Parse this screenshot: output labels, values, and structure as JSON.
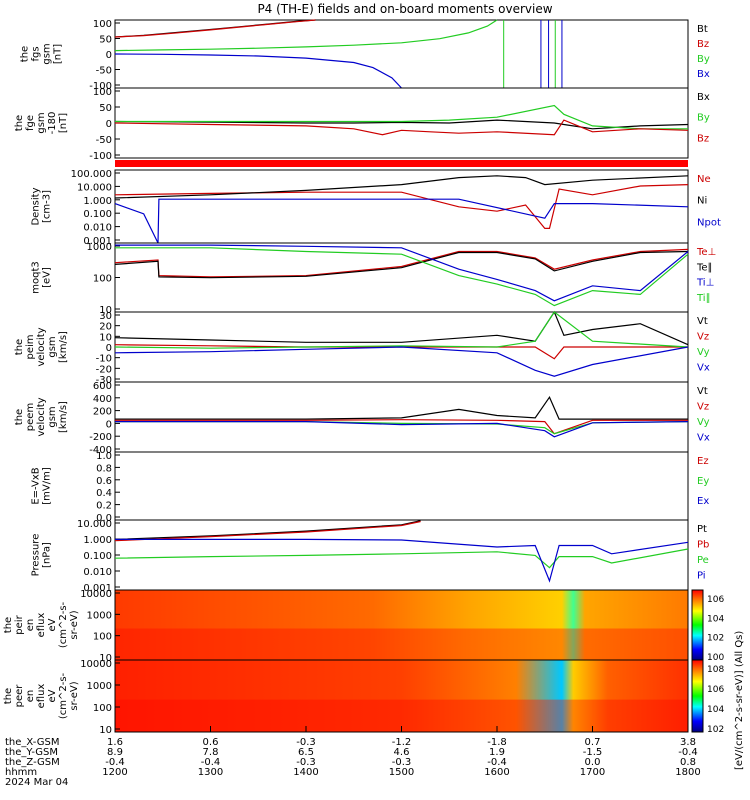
{
  "title": "P4 (TH-E) fields and on-board moments overview",
  "chart_data": [
    {
      "type": "line",
      "ylabel": [
        "the",
        "fgs",
        "gsm",
        "[nT]"
      ],
      "yticks": [
        100,
        50,
        0,
        -50,
        -100
      ],
      "ylim": [
        -100,
        100
      ],
      "legend": [
        {
          "name": "Bt",
          "color": "#000000"
        },
        {
          "name": "Bz",
          "color": "#cc0000"
        },
        {
          "name": "By",
          "color": "#22cc22"
        },
        {
          "name": "Bx",
          "color": "#0000cc"
        }
      ],
      "series": [
        {
          "name": "Bt",
          "color": "#000000",
          "x": [
            1200,
            1230,
            1260,
            1300,
            1330,
            1360,
            1390,
            1410
          ],
          "y": [
            50,
            55,
            62,
            72,
            80,
            88,
            96,
            100
          ]
        },
        {
          "name": "Bz",
          "color": "#cc0000",
          "x": [
            1200,
            1230,
            1260,
            1300,
            1330,
            1360,
            1390,
            1410
          ],
          "y": [
            50,
            54,
            61,
            71,
            79,
            87,
            95,
            100
          ]
        },
        {
          "name": "By",
          "color": "#22cc22",
          "x": [
            1200,
            1250,
            1300,
            1350,
            1400,
            1450,
            1500,
            1540,
            1570,
            1590,
            1600
          ],
          "y": [
            10,
            12,
            14,
            17,
            21,
            26,
            33,
            45,
            62,
            82,
            100
          ]
        },
        {
          "name": "Bx",
          "color": "#0000cc",
          "x": [
            1200,
            1250,
            1300,
            1350,
            1400,
            1450,
            1470,
            1490,
            1500
          ],
          "y": [
            0,
            -1,
            -3,
            -6,
            -12,
            -25,
            -40,
            -70,
            -100
          ]
        }
      ],
      "annotations_x": [
        1607,
        1646,
        1654,
        1661,
        1668
      ]
    },
    {
      "type": "line",
      "ylabel": [
        "the",
        "fge",
        "gsm",
        "-180",
        "[nT]"
      ],
      "yticks": [
        100,
        50,
        0,
        -50,
        -100
      ],
      "ylim": [
        -120,
        120
      ],
      "legend": [
        {
          "name": "Bx",
          "color": "#000000"
        },
        {
          "name": "By",
          "color": "#22cc22"
        },
        {
          "name": "Bz",
          "color": "#cc0000"
        }
      ],
      "series": [
        {
          "name": "Bx",
          "color": "#000000",
          "x": [
            1200,
            1300,
            1400,
            1450,
            1500,
            1550,
            1600,
            1660,
            1670,
            1700,
            1750,
            1800
          ],
          "y": [
            5,
            3,
            0,
            0,
            2,
            0,
            10,
            0,
            -5,
            -20,
            -10,
            -5
          ]
        },
        {
          "name": "By",
          "color": "#22cc22",
          "x": [
            1200,
            1300,
            1400,
            1450,
            1500,
            1550,
            1600,
            1660,
            1670,
            1700,
            1750,
            1800
          ],
          "y": [
            5,
            5,
            5,
            5,
            5,
            10,
            20,
            60,
            30,
            -10,
            -20,
            -20
          ]
        },
        {
          "name": "Bz",
          "color": "#cc0000",
          "x": [
            1200,
            1300,
            1400,
            1450,
            1480,
            1500,
            1530,
            1560,
            1600,
            1660,
            1670,
            1700,
            1750,
            1800
          ],
          "y": [
            0,
            -5,
            -10,
            -20,
            -40,
            -25,
            -30,
            -35,
            -30,
            -40,
            10,
            -30,
            -20,
            -25
          ]
        }
      ]
    },
    {
      "type": "line",
      "ylabel": [
        "Density",
        "[cm-3]"
      ],
      "yticks": [
        "100.000",
        "10.000",
        "1.000",
        "0.100",
        "0.010",
        "0.001"
      ],
      "log": true,
      "ylim": [
        0.001,
        100
      ],
      "legend": [
        {
          "name": "Ne",
          "color": "#cc0000"
        },
        {
          "name": "Ni",
          "color": "#000000"
        },
        {
          "name": "Npot",
          "color": "#0000cc"
        }
      ],
      "series": [
        {
          "name": "Ne",
          "color": "#cc0000",
          "x": [
            1200,
            1300,
            1400,
            1500,
            1560,
            1600,
            1630,
            1650,
            1655,
            1665,
            1700,
            1750,
            1800
          ],
          "y": [
            2,
            2.5,
            3,
            3,
            0.3,
            0.15,
            0.4,
            0.01,
            0.01,
            5,
            2,
            8,
            10
          ]
        },
        {
          "name": "Ni",
          "color": "#000000",
          "x": [
            1200,
            1300,
            1400,
            1500,
            1560,
            1600,
            1630,
            1650,
            1700,
            1800
          ],
          "y": [
            1.2,
            2,
            4,
            10,
            30,
            40,
            30,
            10,
            20,
            40
          ]
        },
        {
          "name": "Npot",
          "color": "#0000cc",
          "x": [
            1200,
            1230,
            1245,
            1246,
            1300,
            1400,
            1500,
            1560,
            1650,
            1660,
            1700,
            1800
          ],
          "y": [
            0.5,
            0.1,
            0.001,
            1,
            1,
            1,
            1,
            1,
            0.05,
            0.5,
            0.5,
            0.3
          ]
        }
      ]
    },
    {
      "type": "line",
      "ylabel": [
        "moqt3",
        "[eV]"
      ],
      "yticks": [
        1000,
        100,
        10
      ],
      "log": true,
      "ylim": [
        3,
        5000
      ],
      "legend": [
        {
          "name": "Te⊥",
          "color": "#cc0000"
        },
        {
          "name": "Te∥",
          "color": "#000000"
        },
        {
          "name": "Ti⊥",
          "color": "#0000cc"
        },
        {
          "name": "Ti∥",
          "color": "#22cc22"
        }
      ],
      "series": [
        {
          "name": "Te⊥",
          "color": "#cc0000",
          "x": [
            1200,
            1245,
            1246,
            1300,
            1400,
            1500,
            1560,
            1600,
            1640,
            1660,
            1700,
            1750,
            1800
          ],
          "y": [
            600,
            800,
            150,
            130,
            150,
            400,
            2000,
            2000,
            1000,
            300,
            800,
            2000,
            2500
          ]
        },
        {
          "name": "Te∥",
          "color": "#000000",
          "x": [
            1200,
            1245,
            1246,
            1300,
            1400,
            1500,
            1560,
            1600,
            1640,
            1660,
            1700,
            1750,
            1800
          ],
          "y": [
            500,
            700,
            130,
            120,
            140,
            350,
            1800,
            1800,
            900,
            250,
            700,
            1800,
            2000
          ]
        },
        {
          "name": "Ti⊥",
          "color": "#0000cc",
          "x": [
            1200,
            1300,
            1400,
            1500,
            1560,
            1600,
            1640,
            1660,
            1700,
            1750,
            1800
          ],
          "y": [
            4000,
            4000,
            3500,
            3000,
            300,
            100,
            30,
            10,
            50,
            30,
            2000
          ]
        },
        {
          "name": "Ti∥",
          "color": "#22cc22",
          "x": [
            1200,
            1300,
            1400,
            1500,
            1560,
            1600,
            1640,
            1660,
            1700,
            1750,
            1800
          ],
          "y": [
            3000,
            3000,
            2000,
            1500,
            150,
            60,
            20,
            6,
            30,
            20,
            1500
          ]
        }
      ]
    },
    {
      "type": "line",
      "ylabel": [
        "the",
        "peim",
        "velocity",
        "gsm",
        "[km/s]"
      ],
      "yticks": [
        30,
        20,
        10,
        0,
        -10,
        -20,
        -30
      ],
      "ylim": [
        -30,
        30
      ],
      "legend": [
        {
          "name": "Vt",
          "color": "#000000"
        },
        {
          "name": "Vz",
          "color": "#cc0000"
        },
        {
          "name": "Vy",
          "color": "#22cc22"
        },
        {
          "name": "Vx",
          "color": "#0000cc"
        }
      ],
      "series": [
        {
          "name": "Vt",
          "color": "#000000",
          "x": [
            1200,
            1300,
            1400,
            1500,
            1600,
            1640,
            1660,
            1670,
            1700,
            1750,
            1800
          ],
          "y": [
            8,
            6,
            4,
            4,
            10,
            5,
            30,
            10,
            15,
            20,
            2
          ]
        },
        {
          "name": "Vz",
          "color": "#cc0000",
          "x": [
            1200,
            1300,
            1400,
            1500,
            1600,
            1640,
            1660,
            1670,
            1700,
            1800
          ],
          "y": [
            2,
            1,
            0,
            0,
            0,
            0,
            -10,
            0,
            0,
            0
          ]
        },
        {
          "name": "Vy",
          "color": "#22cc22",
          "x": [
            1200,
            1300,
            1400,
            1500,
            1600,
            1640,
            1660,
            1700,
            1800
          ],
          "y": [
            0,
            -1,
            0,
            1,
            0,
            5,
            30,
            5,
            0
          ]
        },
        {
          "name": "Vx",
          "color": "#0000cc",
          "x": [
            1200,
            1300,
            1400,
            1500,
            1600,
            1640,
            1660,
            1700,
            1800
          ],
          "y": [
            -5,
            -4,
            -2,
            0,
            -5,
            -20,
            -25,
            -15,
            0
          ]
        }
      ]
    },
    {
      "type": "line",
      "ylabel": [
        "the",
        "peem",
        "velocity",
        "gsm",
        "[km/s]"
      ],
      "yticks": [
        600,
        400,
        200,
        0,
        -200,
        -400
      ],
      "ylim": [
        -500,
        650
      ],
      "legend": [
        {
          "name": "Vt",
          "color": "#000000"
        },
        {
          "name": "Vz",
          "color": "#cc0000"
        },
        {
          "name": "Vy",
          "color": "#22cc22"
        },
        {
          "name": "Vx",
          "color": "#0000cc"
        }
      ],
      "series": [
        {
          "name": "Vt",
          "color": "#000000",
          "x": [
            1200,
            1300,
            1400,
            1500,
            1560,
            1600,
            1640,
            1655,
            1665,
            1700,
            1800
          ],
          "y": [
            40,
            40,
            40,
            60,
            200,
            100,
            60,
            400,
            40,
            40,
            40
          ]
        },
        {
          "name": "Vz",
          "color": "#cc0000",
          "x": [
            1200,
            1300,
            1400,
            1500,
            1600,
            1650,
            1660,
            1700,
            1800
          ],
          "y": [
            20,
            20,
            20,
            30,
            20,
            0,
            -200,
            20,
            20
          ]
        },
        {
          "name": "Vy",
          "color": "#22cc22",
          "x": [
            1200,
            1300,
            1400,
            1500,
            1600,
            1650,
            1660,
            1700,
            1800
          ],
          "y": [
            0,
            0,
            0,
            -30,
            -40,
            -100,
            -200,
            -20,
            0
          ]
        },
        {
          "name": "Vx",
          "color": "#0000cc",
          "x": [
            1200,
            1300,
            1400,
            1500,
            1600,
            1650,
            1660,
            1700,
            1800
          ],
          "y": [
            0,
            0,
            0,
            -50,
            -30,
            -150,
            -250,
            -20,
            0
          ]
        }
      ]
    },
    {
      "type": "line",
      "ylabel": [
        "E=-VxB",
        "[mV/m]"
      ],
      "yticks": [
        "1.0",
        "0.8",
        "0.6",
        "0.4",
        "0.2",
        "0.0"
      ],
      "ylim": [
        0,
        1
      ],
      "legend": [
        {
          "name": "Ez",
          "color": "#cc0000"
        },
        {
          "name": "Ey",
          "color": "#22cc22"
        },
        {
          "name": "Ex",
          "color": "#0000cc"
        }
      ],
      "series": []
    },
    {
      "type": "line",
      "ylabel": [
        "Pressure",
        "[nPa]"
      ],
      "yticks": [
        "10.000",
        "1.000",
        "0.100",
        "0.010",
        "0.001"
      ],
      "log": true,
      "ylim": [
        0.0008,
        20
      ],
      "legend": [
        {
          "name": "Pt",
          "color": "#000000"
        },
        {
          "name": "Pb",
          "color": "#cc0000"
        },
        {
          "name": "Pe",
          "color": "#22cc22"
        },
        {
          "name": "Pi",
          "color": "#0000cc"
        }
      ],
      "series": [
        {
          "name": "Pt",
          "color": "#000000",
          "x": [
            1200,
            1300,
            1400,
            1500,
            1520
          ],
          "y": [
            1.2,
            2,
            4,
            10,
            18
          ]
        },
        {
          "name": "Pb",
          "color": "#cc0000",
          "x": [
            1200,
            1300,
            1400,
            1500,
            1520
          ],
          "y": [
            1,
            1.8,
            3.5,
            9,
            16
          ]
        },
        {
          "name": "Pe",
          "color": "#22cc22",
          "x": [
            1200,
            1300,
            1400,
            1500,
            1600,
            1640,
            1655,
            1665,
            1700,
            1720,
            1800
          ],
          "y": [
            0.08,
            0.1,
            0.12,
            0.15,
            0.2,
            0.12,
            0.02,
            0.1,
            0.1,
            0.04,
            0.3
          ]
        },
        {
          "name": "Pi",
          "color": "#0000cc",
          "x": [
            1200,
            1300,
            1400,
            1500,
            1600,
            1640,
            1655,
            1665,
            1700,
            1720,
            1800
          ],
          "y": [
            1.2,
            1.2,
            1.2,
            1.1,
            0.4,
            0.5,
            0.003,
            0.5,
            0.5,
            0.15,
            0.8
          ]
        }
      ]
    },
    {
      "type": "heatmap",
      "ylabel": [
        "the",
        "peir",
        "en",
        "eflux",
        "eV",
        "(cm^2-s-",
        "sr-eV)"
      ],
      "yticks": [
        10000,
        1000,
        100,
        10
      ],
      "log": true
    },
    {
      "type": "heatmap",
      "ylabel": [
        "the",
        "peer",
        "en",
        "eflux",
        "eV",
        "(cm^2-s-",
        "sr-eV)"
      ],
      "yticks": [
        10000,
        1000,
        100,
        10
      ],
      "log": true
    }
  ],
  "colorbars": {
    "ions_labels": [
      "10^6",
      "10^4",
      "10^2",
      "10^0"
    ],
    "electrons_labels": [
      "10^8",
      "10^6",
      "10^4",
      "10^2"
    ],
    "title": "[eV/(cm^2-s-sr-eV)] (All Qs)"
  },
  "x_axis": {
    "labels": [
      "the_X-GSM",
      "the_Y-GSM",
      "the_Z-GSM",
      "hhmm",
      "2024 Mar 04"
    ],
    "ticks": [
      {
        "hhmm": "1200",
        "x": "1.6",
        "y": "8.9",
        "z": "-0.4"
      },
      {
        "hhmm": "1300",
        "x": "0.6",
        "y": "7.8",
        "z": "-0.4"
      },
      {
        "hhmm": "1400",
        "x": "-0.3",
        "y": "6.5",
        "z": "-0.3"
      },
      {
        "hhmm": "1500",
        "x": "-1.2",
        "y": "4.6",
        "z": "-0.3"
      },
      {
        "hhmm": "1600",
        "x": "-1.8",
        "y": "1.9",
        "z": "-0.4"
      },
      {
        "hhmm": "1700",
        "x": "0.7",
        "y": "-1.5",
        "z": "0.0"
      },
      {
        "hhmm": "1800",
        "x": "3.8",
        "y": "-0.4",
        "z": "0.8"
      }
    ]
  }
}
